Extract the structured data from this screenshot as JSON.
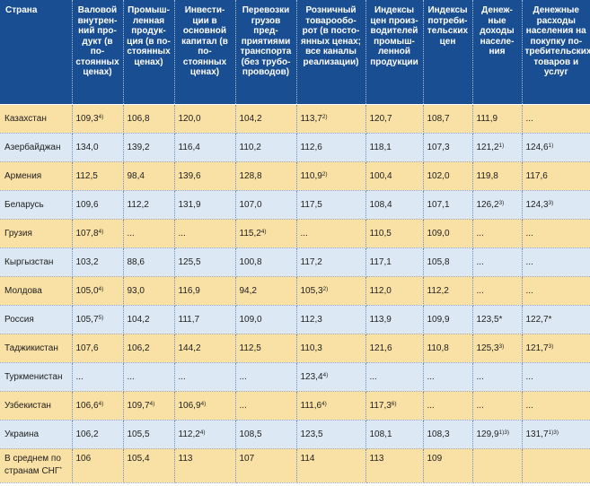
{
  "header": [
    "Страна",
    "Валовой внутрен-ний про-дукт (в по-стоянных ценах)",
    "Промыш-ленная продук-ция (в по-стоянных ценах)",
    "Инвести-ции в основной капитал (в по-стоянных ценах)",
    "Перевозки грузов пред-приятиями транспорта (без трубо-проводов)",
    "Розничный товарообо-рот (в посто-янных ценах; все каналы реализации)",
    "Индексы цен произ-водителей промыш-ленной продукции",
    "Индексы потреби-тельских цен",
    "Денеж-ные доходы населе-ния",
    "Денежные расходы населения на покупку по-требительских товаров и услуг"
  ],
  "rows": [
    {
      "country": "Казахстан",
      "cells": [
        {
          "v": "109,3",
          "sup": "4)"
        },
        {
          "v": "106,8",
          "sup": ""
        },
        {
          "v": "120,0",
          "sup": ""
        },
        {
          "v": "104,2",
          "sup": ""
        },
        {
          "v": "113,7",
          "sup": "2)"
        },
        {
          "v": "120,7",
          "sup": ""
        },
        {
          "v": "108,7",
          "sup": ""
        },
        {
          "v": "111,9",
          "sup": ""
        },
        {
          "v": "...",
          "sup": ""
        }
      ]
    },
    {
      "country": "Азербайджан",
      "cells": [
        {
          "v": "134,0",
          "sup": ""
        },
        {
          "v": "139,2",
          "sup": ""
        },
        {
          "v": "116,4",
          "sup": ""
        },
        {
          "v": "110,2",
          "sup": ""
        },
        {
          "v": "112,6",
          "sup": ""
        },
        {
          "v": "118,1",
          "sup": ""
        },
        {
          "v": "107,3",
          "sup": ""
        },
        {
          "v": "121,2",
          "sup": "1)"
        },
        {
          "v": "124,6",
          "sup": "1)"
        }
      ]
    },
    {
      "country": "Армения",
      "cells": [
        {
          "v": "112,5",
          "sup": ""
        },
        {
          "v": "98,4",
          "sup": ""
        },
        {
          "v": "139,6",
          "sup": ""
        },
        {
          "v": "128,8",
          "sup": ""
        },
        {
          "v": "110,9",
          "sup": "2)"
        },
        {
          "v": "100,4",
          "sup": ""
        },
        {
          "v": "102,0",
          "sup": ""
        },
        {
          "v": "119,8",
          "sup": ""
        },
        {
          "v": "117,6",
          "sup": ""
        }
      ]
    },
    {
      "country": "Беларусь",
      "cells": [
        {
          "v": "109,6",
          "sup": ""
        },
        {
          "v": "112,2",
          "sup": ""
        },
        {
          "v": "131,9",
          "sup": ""
        },
        {
          "v": "107,0",
          "sup": ""
        },
        {
          "v": "117,5",
          "sup": ""
        },
        {
          "v": "108,4",
          "sup": ""
        },
        {
          "v": "107,1",
          "sup": ""
        },
        {
          "v": "126,2",
          "sup": "3)"
        },
        {
          "v": "124,3",
          "sup": "3)"
        }
      ]
    },
    {
      "country": "Грузия",
      "cells": [
        {
          "v": "107,8",
          "sup": "4)"
        },
        {
          "v": "...",
          "sup": ""
        },
        {
          "v": "...",
          "sup": ""
        },
        {
          "v": "115,2",
          "sup": "4)"
        },
        {
          "v": "...",
          "sup": ""
        },
        {
          "v": "110,5",
          "sup": ""
        },
        {
          "v": "109,0",
          "sup": ""
        },
        {
          "v": "...",
          "sup": ""
        },
        {
          "v": "...",
          "sup": ""
        }
      ]
    },
    {
      "country": "Кыргызстан",
      "cells": [
        {
          "v": "103,2",
          "sup": ""
        },
        {
          "v": "88,6",
          "sup": ""
        },
        {
          "v": "125,5",
          "sup": ""
        },
        {
          "v": "100,8",
          "sup": ""
        },
        {
          "v": "117,2",
          "sup": ""
        },
        {
          "v": "117,1",
          "sup": ""
        },
        {
          "v": "105,8",
          "sup": ""
        },
        {
          "v": "...",
          "sup": ""
        },
        {
          "v": "...",
          "sup": ""
        }
      ]
    },
    {
      "country": "Молдова",
      "cells": [
        {
          "v": "105,0",
          "sup": "4)"
        },
        {
          "v": "93,0",
          "sup": ""
        },
        {
          "v": "116,9",
          "sup": ""
        },
        {
          "v": "94,2",
          "sup": ""
        },
        {
          "v": "105,3",
          "sup": "2)"
        },
        {
          "v": "112,0",
          "sup": ""
        },
        {
          "v": "112,2",
          "sup": ""
        },
        {
          "v": "...",
          "sup": ""
        },
        {
          "v": "...",
          "sup": ""
        }
      ]
    },
    {
      "country": "Россия",
      "cells": [
        {
          "v": "105,7",
          "sup": "5)"
        },
        {
          "v": "104,2",
          "sup": ""
        },
        {
          "v": "111,7",
          "sup": ""
        },
        {
          "v": "109,0",
          "sup": ""
        },
        {
          "v": "112,3",
          "sup": ""
        },
        {
          "v": "113,9",
          "sup": ""
        },
        {
          "v": "109,9",
          "sup": ""
        },
        {
          "v": "123,5*",
          "sup": ""
        },
        {
          "v": "122,7*",
          "sup": ""
        }
      ]
    },
    {
      "country": "Таджикистан",
      "cells": [
        {
          "v": "107,6",
          "sup": ""
        },
        {
          "v": "106,2",
          "sup": ""
        },
        {
          "v": "144,2",
          "sup": ""
        },
        {
          "v": "112,5",
          "sup": ""
        },
        {
          "v": "110,3",
          "sup": ""
        },
        {
          "v": "121,6",
          "sup": ""
        },
        {
          "v": "110,8",
          "sup": ""
        },
        {
          "v": "125,3",
          "sup": "3)"
        },
        {
          "v": "121,7",
          "sup": "3)"
        }
      ]
    },
    {
      "country": "Туркменистан",
      "cells": [
        {
          "v": "...",
          "sup": ""
        },
        {
          "v": "...",
          "sup": ""
        },
        {
          "v": "...",
          "sup": ""
        },
        {
          "v": "...",
          "sup": ""
        },
        {
          "v": "123,4",
          "sup": "4)"
        },
        {
          "v": "...",
          "sup": ""
        },
        {
          "v": "...",
          "sup": ""
        },
        {
          "v": "...",
          "sup": ""
        },
        {
          "v": "...",
          "sup": ""
        }
      ]
    },
    {
      "country": "Узбекистан",
      "cells": [
        {
          "v": "106,6",
          "sup": "4)"
        },
        {
          "v": "109,7",
          "sup": "4)"
        },
        {
          "v": "106,9",
          "sup": "4)"
        },
        {
          "v": "...",
          "sup": ""
        },
        {
          "v": "111,6",
          "sup": "4)"
        },
        {
          "v": "117,3",
          "sup": "6)"
        },
        {
          "v": "...",
          "sup": ""
        },
        {
          "v": "...",
          "sup": ""
        },
        {
          "v": "...",
          "sup": ""
        }
      ]
    },
    {
      "country": "Украина",
      "cells": [
        {
          "v": "106,2",
          "sup": ""
        },
        {
          "v": "105,5",
          "sup": ""
        },
        {
          "v": "112,2",
          "sup": "4)"
        },
        {
          "v": "108,5",
          "sup": ""
        },
        {
          "v": "123,5",
          "sup": ""
        },
        {
          "v": "108,1",
          "sup": ""
        },
        {
          "v": "108,3",
          "sup": ""
        },
        {
          "v": "129,9",
          "sup": "1)3)"
        },
        {
          "v": "131,7",
          "sup": "1)3)"
        }
      ]
    },
    {
      "country": "В среднем по странам СНГ",
      "country_sup": "*",
      "cells": [
        {
          "v": "106",
          "sup": ""
        },
        {
          "v": "105,4",
          "sup": ""
        },
        {
          "v": "113",
          "sup": ""
        },
        {
          "v": "107",
          "sup": ""
        },
        {
          "v": "114",
          "sup": ""
        },
        {
          "v": "113",
          "sup": ""
        },
        {
          "v": "109",
          "sup": ""
        },
        {
          "v": "",
          "sup": ""
        },
        {
          "v": "",
          "sup": ""
        }
      ]
    }
  ],
  "colors": {
    "header_bg": "#1a4e93",
    "row_odd": "#f9e0a4",
    "row_even": "#dce8f3"
  }
}
